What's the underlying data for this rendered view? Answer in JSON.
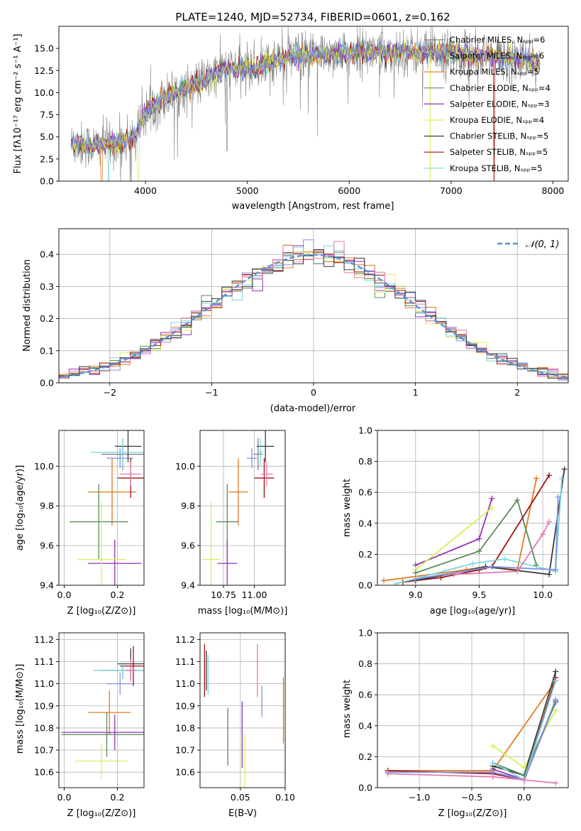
{
  "figure": {
    "title": "PLATE=1240, MJD=52734, FIBERID=0601, z=0.162"
  },
  "colors": {
    "model_colors": [
      "#808080",
      "#7b94e6",
      "#e07b20",
      "#5a8c5a",
      "#9230b8",
      "#d9ef5a",
      "#3a3a3a",
      "#a01010",
      "#7cd6dc"
    ],
    "pink": "#e27ab0",
    "normal_curve": "#5b8fd6",
    "grid": "#b0b0b0"
  },
  "chart_data": [
    {
      "id": "spectrum",
      "type": "line",
      "xlabel": "wavelength [Angstrom, rest frame]",
      "ylabel": "Flux [fλ10⁻¹⁷ erg cm⁻² s⁻¹ A⁻¹]",
      "xlim": [
        3150,
        8150
      ],
      "ylim": [
        0,
        17.5
      ],
      "xticks": [
        4000,
        5000,
        6000,
        7000,
        8000
      ],
      "yticks": [
        0.0,
        2.5,
        5.0,
        7.5,
        10.0,
        12.5,
        15.0
      ],
      "legend_position": "right",
      "legend": [
        "Chabrier MILES, Nₛₚₚ=6",
        "Salpeter MILES, Nₛₚₚ=6",
        "Kroupa MILES, Nₛₚₚ=5",
        "Chabrier ELODIE, Nₛₚₚ=4",
        "Salpeter ELODIE, Nₛₚₚ=3",
        "Kroupa ELODIE, Nₛₚₚ=4",
        "Chabrier STELIB, Nₛₚₚ=5",
        "Salpeter STELIB, Nₛₚₚ=5",
        "Kroupa STELIB, Nₛₚₚ=5"
      ],
      "continuum": {
        "x": [
          3270,
          3500,
          3700,
          3900,
          4000,
          4200,
          4400,
          4600,
          4800,
          5000,
          5200,
          5400,
          5600,
          5800,
          6000,
          6200,
          6400,
          6600,
          6800,
          7000,
          7200,
          7400,
          7600,
          7800,
          7870
        ],
        "y": [
          4.2,
          4.0,
          4.3,
          5.0,
          7.8,
          9.5,
          10.5,
          11.5,
          12.7,
          12.7,
          13.3,
          14.0,
          14.2,
          14.4,
          14.5,
          14.6,
          14.6,
          14.6,
          14.5,
          14.4,
          14.3,
          14.1,
          13.8,
          13.5,
          13.0
        ]
      }
    },
    {
      "id": "residuals",
      "type": "step",
      "xlabel": "(data-model)/error",
      "ylabel": "Normed distribution",
      "xlim": [
        -2.5,
        2.5
      ],
      "ylim": [
        0,
        0.48
      ],
      "xticks": [
        -2,
        -1,
        0,
        1,
        2
      ],
      "yticks": [
        0.0,
        0.1,
        0.2,
        0.3,
        0.4
      ],
      "legend": [
        "𝒩(0, 1)"
      ],
      "legend_position": "top-right",
      "normal_mean": 0,
      "normal_sigma": 1
    },
    {
      "id": "age-vs-Z",
      "type": "errorbar",
      "xlabel": "Z [log₁₀(Z/Z⊙)]",
      "ylabel": "age  [log₁₀(age/yr)]",
      "xlim": [
        -0.02,
        0.3
      ],
      "ylim": [
        9.4,
        10.18
      ],
      "xticks": [
        0.0,
        0.2
      ],
      "yticks": [
        9.4,
        9.6,
        9.8,
        10.0
      ],
      "points": [
        {
          "c": 0,
          "x": 0.22,
          "y": 10.06,
          "xe": 0.08,
          "ye": 0.08
        },
        {
          "c": 1,
          "x": 0.21,
          "y": 10.04,
          "xe": 0.05,
          "ye": 0.05
        },
        {
          "c": 2,
          "x": 0.18,
          "y": 9.87,
          "xe": 0.09,
          "ye": 0.17
        },
        {
          "c": 3,
          "x": 0.13,
          "y": 9.72,
          "xe": 0.11,
          "ye": 0.19
        },
        {
          "c": 4,
          "x": 0.19,
          "y": 9.51,
          "xe": 0.1,
          "ye": 0.12
        },
        {
          "c": 5,
          "x": 0.14,
          "y": 9.53,
          "xe": 0.09,
          "ye": 0.29
        },
        {
          "c": 6,
          "x": 0.24,
          "y": 10.1,
          "xe": 0.05,
          "ye": 0.08
        },
        {
          "c": 7,
          "x": 0.25,
          "y": 9.94,
          "xe": 0.05,
          "ye": 0.1
        },
        {
          "c": 8,
          "x": 0.22,
          "y": 10.07,
          "xe": 0.12,
          "ye": 0.07
        },
        {
          "c": "pink",
          "x": 0.25,
          "y": 9.96,
          "xe": 0.04,
          "ye": 0.06
        }
      ]
    },
    {
      "id": "age-vs-mass",
      "type": "errorbar",
      "xlabel": "mass [log₁₀(M/M⊙)]",
      "ylabel": "",
      "xlim": [
        10.56,
        11.25
      ],
      "ylim": [
        9.4,
        10.18
      ],
      "xticks": [
        10.75,
        11.0
      ],
      "yticks": [
        9.4,
        9.6,
        9.8,
        10.0
      ],
      "points": [
        {
          "c": 0,
          "x": 11.03,
          "y": 10.06,
          "xe": 0.04,
          "ye": 0.08
        },
        {
          "c": 1,
          "x": 10.98,
          "y": 10.04,
          "xe": 0.04,
          "ye": 0.05
        },
        {
          "c": 2,
          "x": 10.87,
          "y": 9.87,
          "xe": 0.08,
          "ye": 0.17
        },
        {
          "c": 3,
          "x": 10.78,
          "y": 9.72,
          "xe": 0.09,
          "ye": 0.19
        },
        {
          "c": 4,
          "x": 10.78,
          "y": 9.51,
          "xe": 0.08,
          "ye": 0.12
        },
        {
          "c": 5,
          "x": 10.65,
          "y": 9.53,
          "xe": 0.07,
          "ye": 0.29
        },
        {
          "c": 6,
          "x": 11.09,
          "y": 10.1,
          "xe": 0.07,
          "ye": 0.08
        },
        {
          "c": 7,
          "x": 11.08,
          "y": 9.94,
          "xe": 0.08,
          "ye": 0.1
        },
        {
          "c": 8,
          "x": 11.05,
          "y": 10.07,
          "xe": 0.02,
          "ye": 0.07
        },
        {
          "c": "pink",
          "x": 11.1,
          "y": 9.96,
          "xe": 0.05,
          "ye": 0.06
        }
      ]
    },
    {
      "id": "massweight-vs-age",
      "type": "line",
      "xlabel": "age  [log₁₀(age/yr)]",
      "ylabel": "mass weight",
      "xlim": [
        8.7,
        10.2
      ],
      "ylim": [
        0,
        1.0
      ],
      "xticks": [
        9.0,
        9.5,
        10.0
      ],
      "yticks": [
        0.0,
        0.2,
        0.4,
        0.6,
        0.8,
        1.0
      ],
      "series": [
        {
          "c": 2,
          "x": [
            8.75,
            9.4,
            9.55,
            9.8,
            9.95
          ],
          "y": [
            0.03,
            0.1,
            0.12,
            0.1,
            0.69
          ]
        },
        {
          "c": 4,
          "x": [
            9.0,
            9.5,
            9.6
          ],
          "y": [
            0.13,
            0.3,
            0.56
          ]
        },
        {
          "c": 5,
          "x": [
            9.0,
            9.6
          ],
          "y": [
            0.1,
            0.5
          ]
        },
        {
          "c": 3,
          "x": [
            9.0,
            9.5,
            9.8,
            9.95
          ],
          "y": [
            0.08,
            0.22,
            0.55,
            0.13
          ]
        },
        {
          "c": 7,
          "x": [
            8.9,
            9.2,
            9.5,
            9.6,
            10.05
          ],
          "y": [
            0.02,
            0.05,
            0.1,
            0.12,
            0.71
          ]
        },
        {
          "c": 6,
          "x": [
            9.0,
            9.55,
            10.05,
            10.17
          ],
          "y": [
            0.03,
            0.12,
            0.07,
            0.75
          ]
        },
        {
          "c": 8,
          "x": [
            8.85,
            9.45,
            9.7,
            10.1,
            10.15
          ],
          "y": [
            0.01,
            0.14,
            0.17,
            0.09,
            0.69
          ]
        },
        {
          "c": 1,
          "x": [
            9.0,
            9.6,
            10.1,
            10.12
          ],
          "y": [
            0.04,
            0.12,
            0.1,
            0.57
          ]
        },
        {
          "c": "pink",
          "x": [
            9.3,
            9.8,
            10.0,
            10.05
          ],
          "y": [
            0.07,
            0.09,
            0.33,
            0.41
          ]
        }
      ]
    },
    {
      "id": "mass-vs-Z",
      "type": "errorbar",
      "xlabel": "Z [log₁₀(Z/Z⊙)]",
      "ylabel": "mass [log₁₀(M/M⊙)]",
      "xlim": [
        -0.02,
        0.3
      ],
      "ylim": [
        10.53,
        11.23
      ],
      "xticks": [
        0.0,
        0.2
      ],
      "yticks": [
        10.6,
        10.7,
        10.8,
        10.9,
        11.0,
        11.1,
        11.2
      ],
      "points": [
        {
          "c": 0,
          "x": 0.22,
          "y": 11.06,
          "xe": 0.08,
          "ye": 0.04
        },
        {
          "c": 1,
          "x": 0.21,
          "y": 11.0,
          "xe": 0.05,
          "ye": 0.05
        },
        {
          "c": 2,
          "x": 0.17,
          "y": 10.87,
          "xe": 0.08,
          "ye": 0.1
        },
        {
          "c": 3,
          "x": 0.16,
          "y": 10.77,
          "xe": 0.17,
          "ye": 0.1
        },
        {
          "c": 4,
          "x": 0.19,
          "y": 10.78,
          "xe": 0.2,
          "ye": 0.08
        },
        {
          "c": 5,
          "x": 0.14,
          "y": 10.65,
          "xe": 0.1,
          "ye": 0.08
        },
        {
          "c": 6,
          "x": 0.25,
          "y": 11.09,
          "xe": 0.05,
          "ye": 0.07
        },
        {
          "c": 7,
          "x": 0.26,
          "y": 11.08,
          "xe": 0.05,
          "ye": 0.09
        },
        {
          "c": 8,
          "x": 0.22,
          "y": 11.06,
          "xe": 0.11,
          "ye": 0.04
        },
        {
          "c": "pink",
          "x": 0.25,
          "y": 11.06,
          "xe": 0.02,
          "ye": 0.05
        }
      ]
    },
    {
      "id": "mass-vs-ebv",
      "type": "errorbar",
      "xlabel": "E(B-V)",
      "ylabel": "",
      "xlim": [
        0.005,
        0.1
      ],
      "ylim": [
        10.53,
        11.23
      ],
      "xticks": [
        0.05,
        0.1
      ],
      "yticks": [
        10.6,
        10.7,
        10.8,
        10.9,
        11.0,
        11.1,
        11.2
      ],
      "points": [
        {
          "c": 7,
          "x": 0.01,
          "y": 11.06,
          "ye": 0.12
        },
        {
          "c": 6,
          "x": 0.012,
          "y": 11.06,
          "ye": 0.09
        },
        {
          "c": 8,
          "x": 0.014,
          "y": 11.04,
          "ye": 0.09
        },
        {
          "c": 3,
          "x": 0.036,
          "y": 10.76,
          "ye": 0.13
        },
        {
          "c": 4,
          "x": 0.052,
          "y": 10.77,
          "ye": 0.15
        },
        {
          "c": 5,
          "x": 0.055,
          "y": 10.62,
          "ye": 0.15
        },
        {
          "c": "pink",
          "x": 0.069,
          "y": 11.06,
          "ye": 0.12
        },
        {
          "c": 1,
          "x": 0.074,
          "y": 10.92,
          "ye": 0.07
        },
        {
          "c": 2,
          "x": 0.098,
          "y": 10.88,
          "ye": 0.15
        }
      ]
    },
    {
      "id": "massweight-vs-Z",
      "type": "line",
      "xlabel": "Z [log₁₀(Z/Z⊙)]",
      "ylabel": "mass weight",
      "xlim": [
        -1.4,
        0.42
      ],
      "ylim": [
        0,
        1.0
      ],
      "xticks": [
        -1.0,
        -0.5,
        0.0
      ],
      "yticks": [
        0.0,
        0.2,
        0.4,
        0.6,
        0.8,
        1.0
      ],
      "series": [
        {
          "c": 2,
          "x": [
            -1.3,
            -0.3,
            0.3
          ],
          "y": [
            0.11,
            0.11,
            0.69
          ]
        },
        {
          "c": 5,
          "x": [
            -0.3,
            0.0,
            0.3
          ],
          "y": [
            0.27,
            0.13,
            0.5
          ]
        },
        {
          "c": 4,
          "x": [
            -0.3,
            0.0,
            0.3
          ],
          "y": [
            0.12,
            0.05,
            0.56
          ]
        },
        {
          "c": 7,
          "x": [
            -1.3,
            -0.3,
            0.0,
            0.3
          ],
          "y": [
            0.11,
            0.09,
            0.05,
            0.71
          ]
        },
        {
          "c": 6,
          "x": [
            -0.3,
            0.0,
            0.3
          ],
          "y": [
            0.14,
            0.08,
            0.75
          ]
        },
        {
          "c": 3,
          "x": [
            -0.3,
            0.0,
            0.3
          ],
          "y": [
            0.16,
            0.08,
            0.55
          ]
        },
        {
          "c": 8,
          "x": [
            -0.3,
            0.0,
            0.3
          ],
          "y": [
            0.16,
            0.05,
            0.69
          ]
        },
        {
          "c": 1,
          "x": [
            -1.3,
            -0.3,
            0.0,
            0.3
          ],
          "y": [
            0.1,
            0.1,
            0.05,
            0.57
          ]
        },
        {
          "c": "pink",
          "x": [
            -1.3,
            -0.3,
            0.0,
            0.3
          ],
          "y": [
            0.09,
            0.07,
            0.05,
            0.03
          ]
        }
      ]
    }
  ]
}
